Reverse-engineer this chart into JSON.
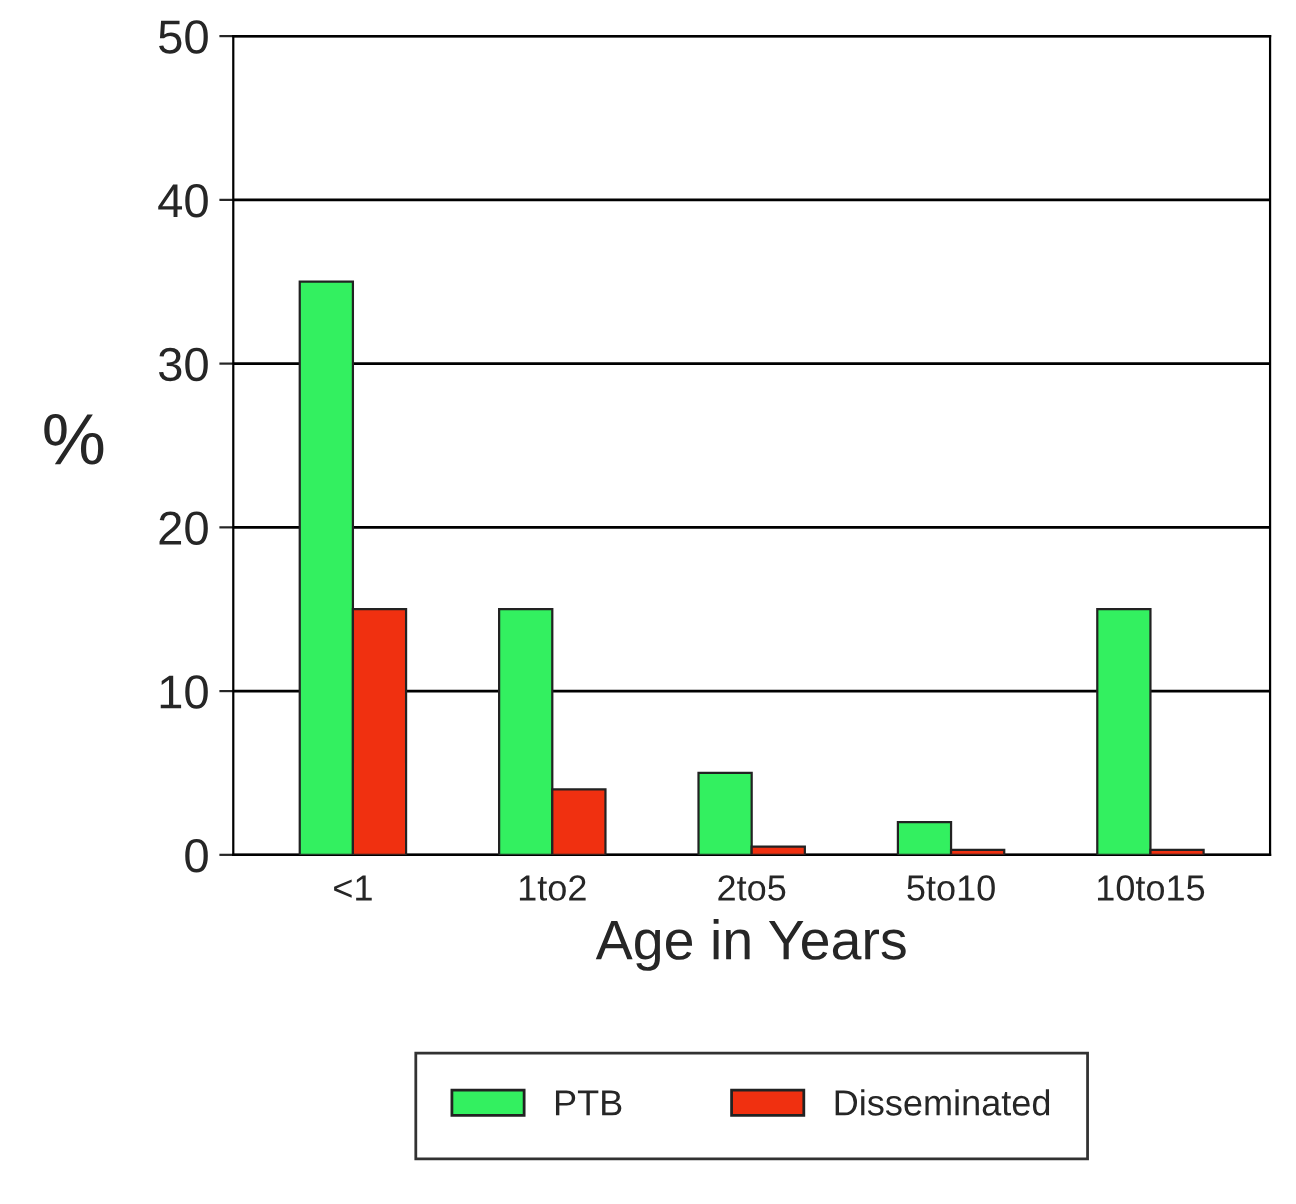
{
  "chart_data": {
    "type": "bar",
    "xlabel": "Age in Years",
    "ylabel": "%",
    "categories": [
      "<1",
      "1to2",
      "2to5",
      "5to10",
      "10to15"
    ],
    "series": [
      {
        "name": "PTB",
        "color": "#33f060",
        "values": [
          35,
          15,
          5,
          2,
          15
        ]
      },
      {
        "name": "Disseminated",
        "color": "#f03010",
        "values": [
          15,
          4,
          0.5,
          0.3,
          0.3
        ]
      }
    ],
    "ylim": [
      0,
      50
    ],
    "yticks": [
      0,
      10,
      20,
      30,
      40,
      50
    ],
    "grid": "y",
    "legend": "bottom"
  }
}
